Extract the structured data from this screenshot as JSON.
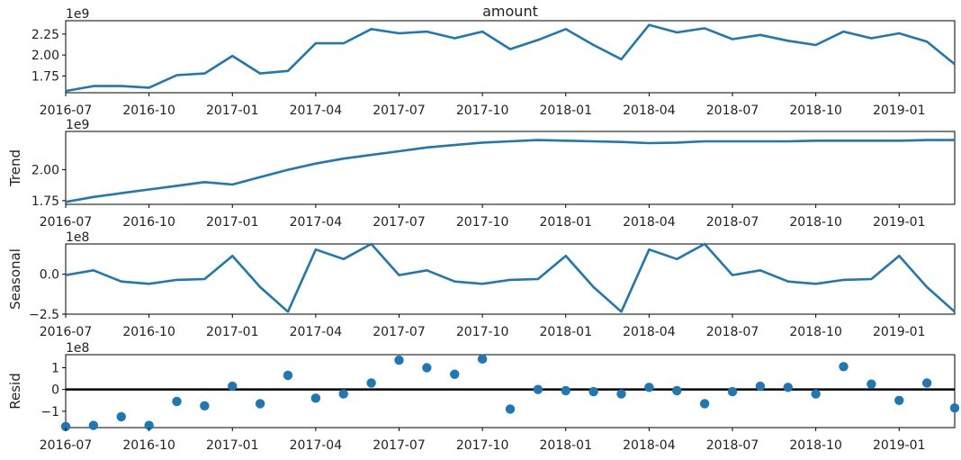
{
  "chart_data": [
    {
      "type": "line",
      "title": "amount",
      "ylabel": "",
      "offset_text": "1e9",
      "unit_scale": 1000000000.0,
      "xlim": [
        "2016-07",
        "2019-03"
      ],
      "ylim": [
        1.55,
        2.41
      ],
      "yticks": [
        1.75,
        2.0,
        2.25
      ],
      "ytick_labels": [
        "1.75",
        "2.00",
        "2.25"
      ],
      "xtick_labels": [
        "2016-07",
        "2016-10",
        "2017-01",
        "2017-04",
        "2017-07",
        "2017-10",
        "2018-01",
        "2018-04",
        "2018-07",
        "2018-10",
        "2019-01"
      ],
      "x": [
        "2016-07",
        "2016-08",
        "2016-09",
        "2016-10",
        "2016-11",
        "2016-12",
        "2017-01",
        "2017-02",
        "2017-03",
        "2017-04",
        "2017-05",
        "2017-06",
        "2017-07",
        "2017-08",
        "2017-09",
        "2017-10",
        "2017-11",
        "2017-12",
        "2018-01",
        "2018-02",
        "2018-03",
        "2018-04",
        "2018-05",
        "2018-06",
        "2018-07",
        "2018-08",
        "2018-09",
        "2018-10",
        "2018-11",
        "2018-12",
        "2019-01",
        "2019-02",
        "2019-03"
      ],
      "values": [
        1.57,
        1.63,
        1.63,
        1.61,
        1.76,
        1.78,
        1.99,
        1.78,
        1.81,
        2.14,
        2.14,
        2.31,
        2.26,
        2.28,
        2.2,
        2.28,
        2.07,
        2.18,
        2.31,
        2.12,
        1.95,
        2.36,
        2.27,
        2.32,
        2.19,
        2.24,
        2.17,
        2.12,
        2.28,
        2.2,
        2.26,
        2.16,
        1.89
      ]
    },
    {
      "type": "line",
      "title": "",
      "ylabel": "Trend",
      "offset_text": "1e9",
      "unit_scale": 1000000000.0,
      "xlim": [
        "2016-07",
        "2019-03"
      ],
      "ylim": [
        1.72,
        2.31
      ],
      "yticks": [
        1.75,
        2.0
      ],
      "ytick_labels": [
        "1.75",
        "2.00"
      ],
      "xtick_labels": [
        "2016-07",
        "2016-10",
        "2017-01",
        "2017-04",
        "2017-07",
        "2017-10",
        "2018-01",
        "2018-04",
        "2018-07",
        "2018-10",
        "2019-01"
      ],
      "x": [
        "2016-07",
        "2016-08",
        "2016-09",
        "2016-10",
        "2016-11",
        "2016-12",
        "2017-01",
        "2017-02",
        "2017-03",
        "2017-04",
        "2017-05",
        "2017-06",
        "2017-07",
        "2017-08",
        "2017-09",
        "2017-10",
        "2017-11",
        "2017-12",
        "2018-01",
        "2018-02",
        "2018-03",
        "2018-04",
        "2018-05",
        "2018-06",
        "2018-07",
        "2018-08",
        "2018-09",
        "2018-10",
        "2018-11",
        "2018-12",
        "2019-01",
        "2019-02",
        "2019-03"
      ],
      "values": [
        1.74,
        1.78,
        1.81,
        1.84,
        1.87,
        1.9,
        1.88,
        1.94,
        2.0,
        2.05,
        2.09,
        2.12,
        2.15,
        2.18,
        2.2,
        2.22,
        2.23,
        2.24,
        2.235,
        2.23,
        2.225,
        2.215,
        2.22,
        2.23,
        2.23,
        2.23,
        2.23,
        2.235,
        2.235,
        2.235,
        2.235,
        2.24,
        2.24
      ]
    },
    {
      "type": "line",
      "title": "",
      "ylabel": "Seasonal",
      "offset_text": "1e8",
      "unit_scale": 100000000.0,
      "xlim": [
        "2016-07",
        "2019-03"
      ],
      "ylim": [
        -2.5,
        1.9
      ],
      "yticks": [
        -2.5,
        0.0
      ],
      "ytick_labels": [
        "−2.5",
        "0.0"
      ],
      "xtick_labels": [
        "2016-07",
        "2016-10",
        "2017-01",
        "2017-04",
        "2017-07",
        "2017-10",
        "2018-01",
        "2018-04",
        "2018-07",
        "2018-10",
        "2019-01"
      ],
      "x": [
        "2016-07",
        "2016-08",
        "2016-09",
        "2016-10",
        "2016-11",
        "2016-12",
        "2017-01",
        "2017-02",
        "2017-03",
        "2017-04",
        "2017-05",
        "2017-06",
        "2017-07",
        "2017-08",
        "2017-09",
        "2017-10",
        "2017-11",
        "2017-12",
        "2018-01",
        "2018-02",
        "2018-03",
        "2018-04",
        "2018-05",
        "2018-06",
        "2018-07",
        "2018-08",
        "2018-09",
        "2018-10",
        "2018-11",
        "2018-12",
        "2019-01",
        "2019-02",
        "2019-03"
      ],
      "values": [
        -0.05,
        0.25,
        -0.45,
        -0.6,
        -0.35,
        -0.3,
        1.15,
        -0.8,
        -2.35,
        1.55,
        0.95,
        1.9,
        -0.05,
        0.25,
        -0.45,
        -0.6,
        -0.35,
        -0.3,
        1.15,
        -0.8,
        -2.35,
        1.55,
        0.95,
        1.9,
        -0.05,
        0.25,
        -0.45,
        -0.6,
        -0.35,
        -0.3,
        1.15,
        -0.8,
        -2.35
      ]
    },
    {
      "type": "scatter",
      "title": "",
      "ylabel": "Resid",
      "offset_text": "1e8",
      "unit_scale": 100000000.0,
      "xlim": [
        "2016-07",
        "2019-03"
      ],
      "ylim": [
        -1.75,
        1.6
      ],
      "yticks": [
        -1,
        0,
        1
      ],
      "ytick_labels": [
        "−1",
        "0",
        "1"
      ],
      "zero_line": true,
      "xtick_labels": [
        "2016-07",
        "2016-10",
        "2017-01",
        "2017-04",
        "2017-07",
        "2017-10",
        "2018-01",
        "2018-04",
        "2018-07",
        "2018-10",
        "2019-01"
      ],
      "x": [
        "2016-07",
        "2016-08",
        "2016-09",
        "2016-10",
        "2016-11",
        "2016-12",
        "2017-01",
        "2017-02",
        "2017-03",
        "2017-04",
        "2017-05",
        "2017-06",
        "2017-07",
        "2017-08",
        "2017-09",
        "2017-10",
        "2017-11",
        "2017-12",
        "2018-01",
        "2018-02",
        "2018-03",
        "2018-04",
        "2018-05",
        "2018-06",
        "2018-07",
        "2018-08",
        "2018-09",
        "2018-10",
        "2018-11",
        "2018-12",
        "2019-01",
        "2019-02",
        "2019-03"
      ],
      "values": [
        -1.7,
        -1.65,
        -1.25,
        -1.65,
        -0.55,
        -0.75,
        0.15,
        -0.65,
        0.65,
        -0.4,
        -0.2,
        0.3,
        1.35,
        1.0,
        0.7,
        1.4,
        -0.9,
        0.0,
        -0.05,
        -0.1,
        -0.2,
        0.1,
        -0.05,
        -0.65,
        -0.1,
        0.15,
        0.1,
        -0.2,
        1.05,
        0.25,
        -0.5,
        0.3,
        -0.85
      ]
    }
  ],
  "colors": {
    "series": "#1f77b4",
    "axis": "#000000",
    "zero_line": "#000000"
  }
}
